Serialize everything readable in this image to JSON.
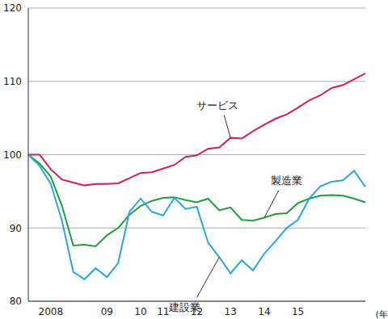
{
  "chart_data": {
    "type": "line",
    "categories": [
      null,
      null,
      "2008",
      null,
      null,
      null,
      null,
      "09",
      null,
      null,
      "10",
      null,
      "11",
      null,
      null,
      "12",
      null,
      null,
      "13",
      null,
      null,
      "14",
      null,
      null,
      "15",
      null,
      null,
      null,
      null,
      null,
      null
    ],
    "x_label": "(年)",
    "ylim": [
      80,
      120
    ],
    "yticks": [
      80,
      90,
      100,
      110,
      120
    ],
    "grid": true,
    "series": [
      {
        "name": "サービス",
        "color": "#d81b60",
        "values": [
          100,
          100,
          98,
          96.6,
          96.2,
          95.8,
          96,
          96,
          96.1,
          96.8,
          97.5,
          97.6,
          98.1,
          98.6,
          99.7,
          99.9,
          100.8,
          101,
          102.3,
          102.2,
          103.2,
          104.1,
          104.9,
          105.5,
          106.4,
          107.4,
          108.1,
          109.1,
          109.5,
          110.3,
          111.1
        ]
      },
      {
        "name": "製造業",
        "color": "#1f9e3a",
        "values": [
          100,
          98.8,
          97,
          93,
          87.6,
          87.7,
          87.5,
          89,
          90,
          91.8,
          93,
          93.7,
          94.1,
          94.2,
          93.8,
          93.5,
          94,
          92.4,
          92.8,
          91.1,
          91,
          91.4,
          91.9,
          92,
          93.4,
          94,
          94.4,
          94.5,
          94.4,
          94,
          93.5
        ]
      },
      {
        "name": "建設業",
        "color": "#29a8e0",
        "values": [
          100,
          98.5,
          96,
          91,
          84,
          83,
          84.5,
          83.3,
          85.2,
          92.2,
          94,
          92.2,
          91.7,
          94.1,
          92.6,
          92.9,
          88,
          86,
          83.8,
          85.6,
          84.2,
          86.5,
          88.2,
          90,
          91.1,
          94,
          95.7,
          96.3,
          96.5,
          97.8,
          95.6
        ]
      }
    ]
  }
}
